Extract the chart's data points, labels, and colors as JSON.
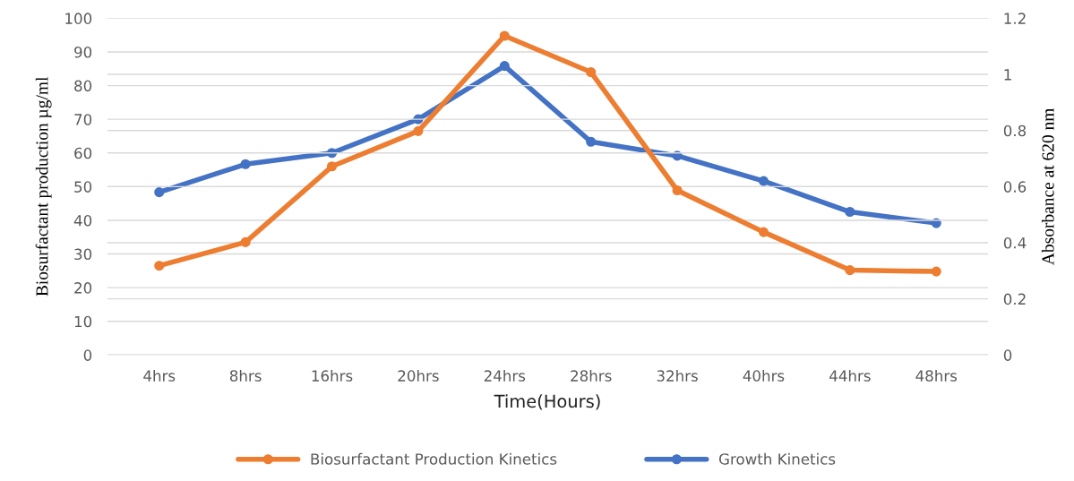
{
  "chart_data": {
    "type": "line",
    "xlabel": "Time(Hours)",
    "ylabel": "Biosurfactant production µg/ml",
    "y2label": "Absorbance at 620 nm",
    "categories": [
      "4hrs",
      "8hrs",
      "16hrs",
      "20hrs",
      "24hrs",
      "28hrs",
      "32hrs",
      "40hrs",
      "44hrs",
      "48hrs"
    ],
    "series": [
      {
        "name": "Biosurfactant Production Kinetics",
        "color": "#ed7d31",
        "values": [
          26.5,
          33.5,
          56,
          66.5,
          94.8,
          84,
          48.9,
          36.5,
          25.2,
          24.8
        ]
      },
      {
        "name": "Growth Kinetics",
        "color": "#4472c4",
        "axis": "y2",
        "values": [
          0.58,
          0.68,
          0.72,
          0.84,
          1.03,
          0.76,
          0.71,
          0.62,
          0.51,
          0.47
        ]
      }
    ],
    "ylim": [
      0,
      100
    ],
    "yticks": [
      0,
      10,
      20,
      30,
      40,
      50,
      60,
      70,
      80,
      90,
      100
    ],
    "y2lim": [
      0,
      1.2
    ],
    "y2ticks": [
      0,
      0.2,
      0.4,
      0.6,
      0.8,
      1,
      1.2
    ],
    "grid": "y",
    "legend": "bottom",
    "marker": "circle",
    "line_style": "solid"
  }
}
